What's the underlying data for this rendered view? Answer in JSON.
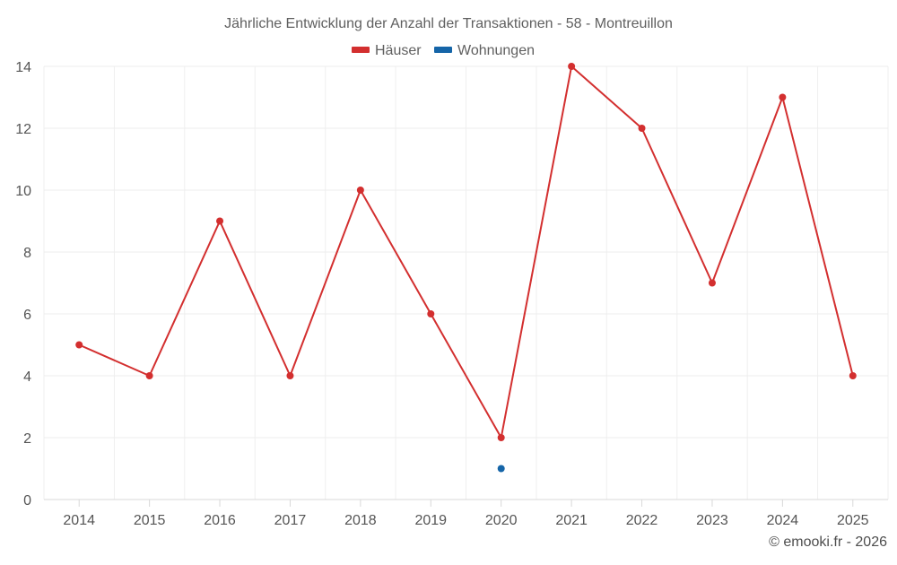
{
  "chart_data": {
    "type": "line",
    "title": "Jährliche Entwicklung der Anzahl der Transaktionen - 58 - Montreuillon",
    "subtitle": "",
    "xlabel": "",
    "ylabel": "",
    "categories": [
      "2014",
      "2015",
      "2016",
      "2017",
      "2018",
      "2019",
      "2020",
      "2021",
      "2022",
      "2023",
      "2024",
      "2025"
    ],
    "yticks": [
      "0",
      "2",
      "4",
      "6",
      "8",
      "10",
      "12",
      "14"
    ],
    "ylim": [
      0,
      14
    ],
    "grid": true,
    "legend_position": "top-center",
    "series": [
      {
        "name": "Häuser",
        "color": "#d32f2f",
        "values": [
          5,
          4,
          9,
          4,
          10,
          6,
          2,
          14,
          12,
          7,
          13,
          4
        ]
      },
      {
        "name": "Wohnungen",
        "color": "#1565a8",
        "values": [
          null,
          null,
          null,
          null,
          null,
          null,
          1,
          null,
          null,
          null,
          null,
          null
        ]
      }
    ],
    "credit": "© emooki.fr - 2026"
  }
}
